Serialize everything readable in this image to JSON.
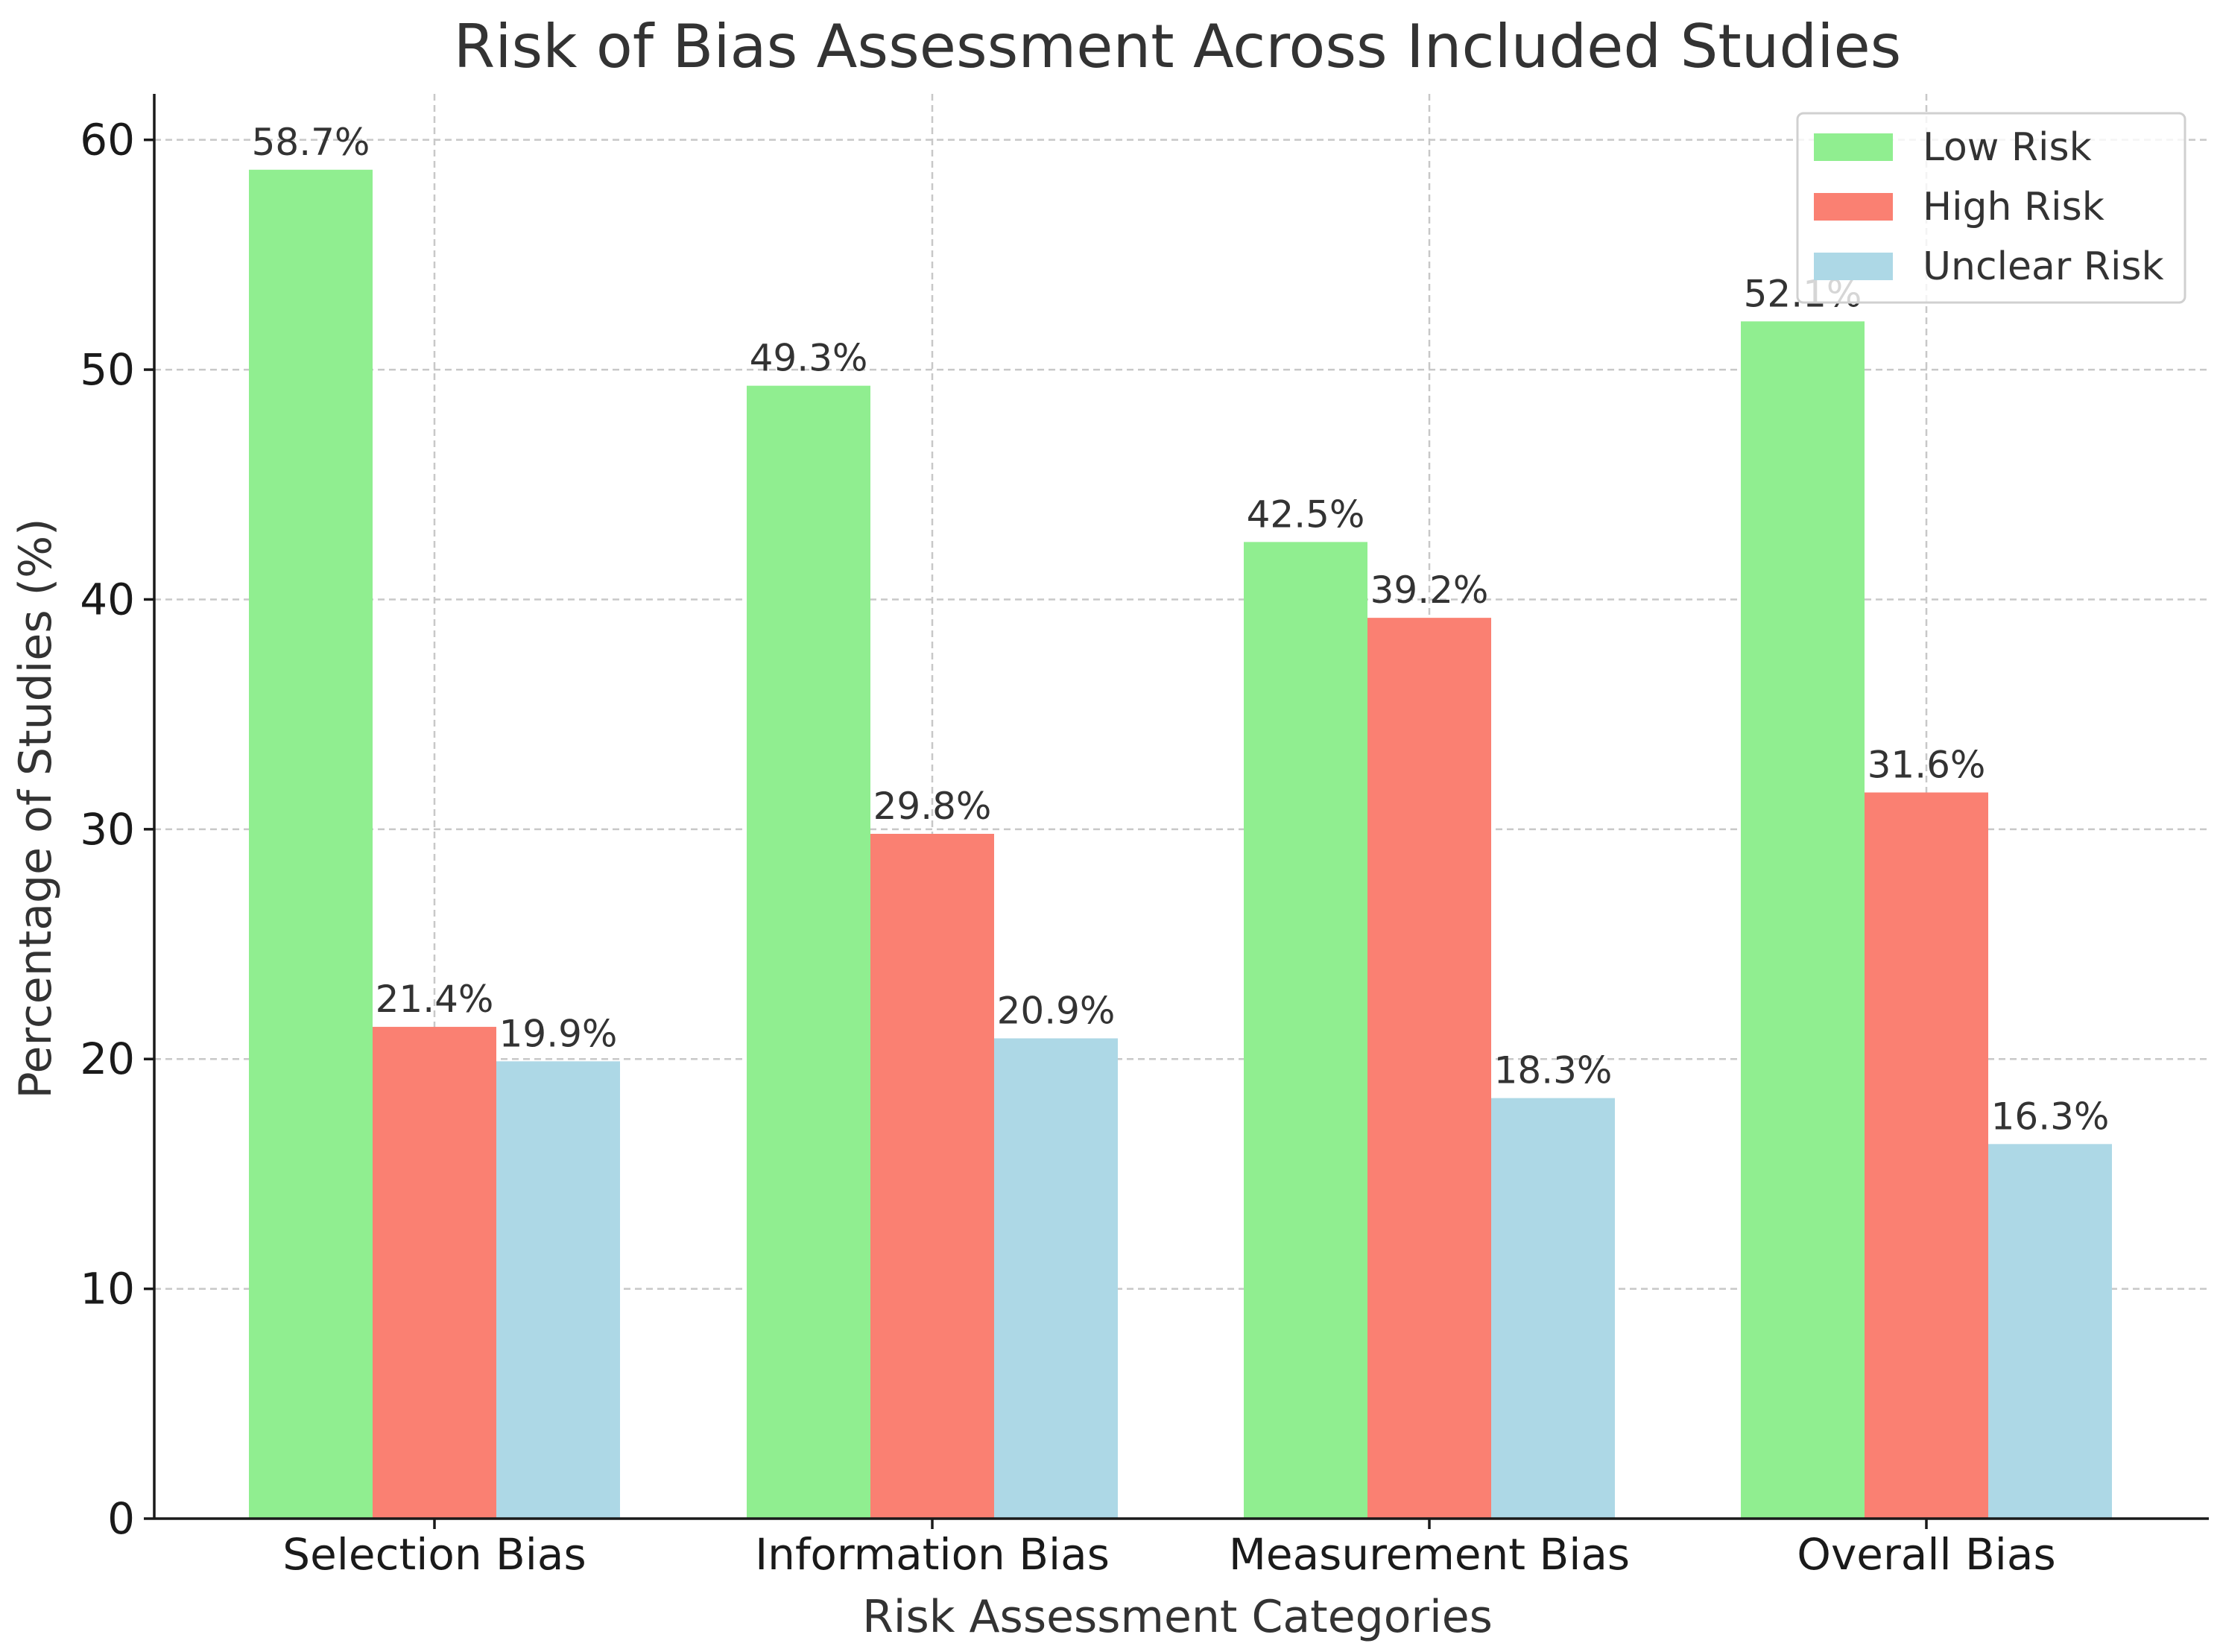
{
  "chart_data": {
    "type": "bar",
    "title": "Risk of Bias Assessment Across Included Studies",
    "xlabel": "Risk Assessment Categories",
    "ylabel": "Percentage of Studies (%)",
    "categories": [
      "Selection Bias",
      "Information Bias",
      "Measurement Bias",
      "Overall Bias"
    ],
    "series": [
      {
        "name": "Low Risk",
        "color": "#90ee90",
        "values": [
          58.7,
          49.3,
          42.5,
          52.1
        ],
        "labels": [
          "58.7%",
          "49.3%",
          "42.5%",
          "52.1%"
        ]
      },
      {
        "name": "High Risk",
        "color": "#fa8072",
        "values": [
          21.4,
          29.8,
          39.2,
          31.6
        ],
        "labels": [
          "21.4%",
          "29.8%",
          "39.2%",
          "31.6%"
        ]
      },
      {
        "name": "Unclear Risk",
        "color": "#add8e6",
        "values": [
          19.9,
          20.9,
          18.3,
          16.3
        ],
        "labels": [
          "19.9%",
          "20.9%",
          "18.3%",
          "16.3%"
        ]
      }
    ],
    "ylim": [
      0,
      62
    ],
    "yticks": [
      0,
      10,
      20,
      30,
      40,
      50,
      60
    ],
    "ytick_labels": [
      "0",
      "10",
      "20",
      "30",
      "40",
      "50",
      "60"
    ],
    "grid": true,
    "legend_position": "top-right"
  }
}
